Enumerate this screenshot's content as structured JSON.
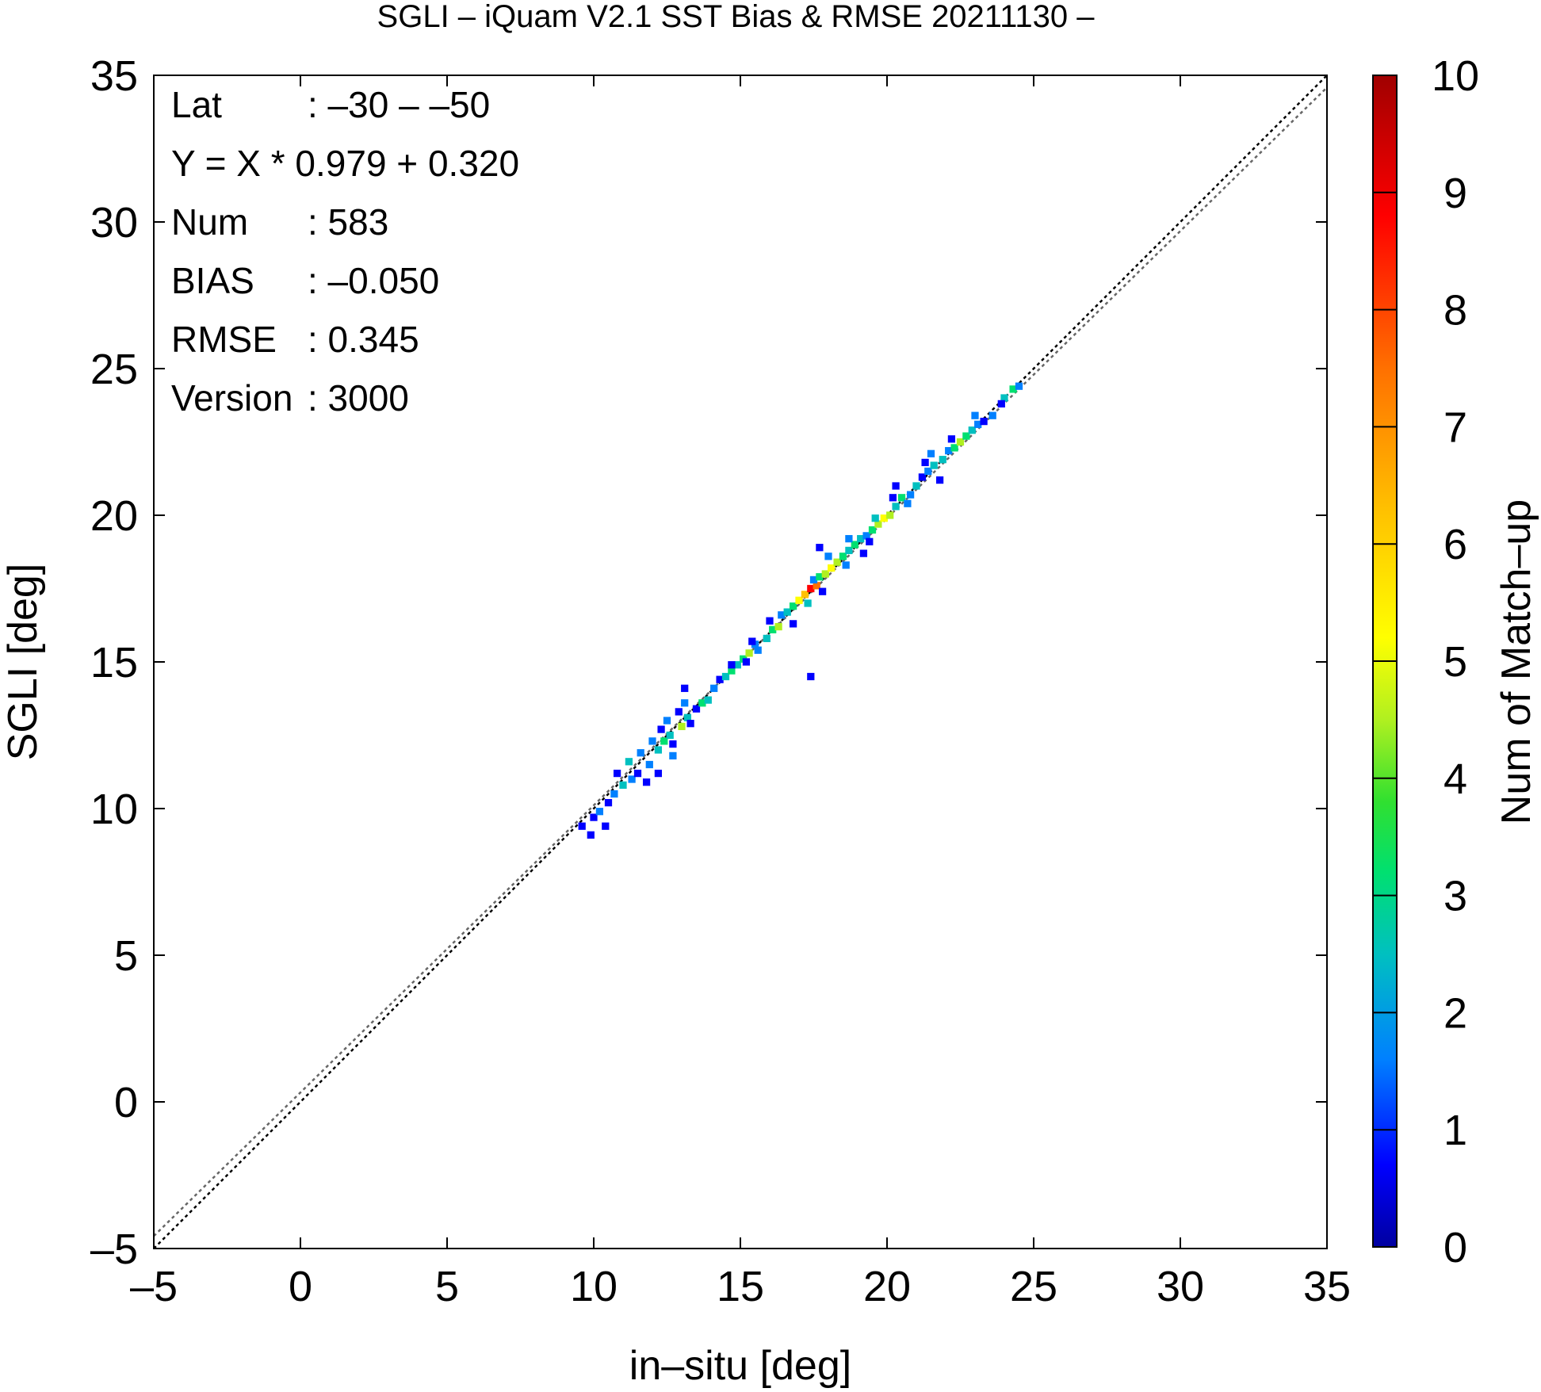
{
  "chart_data": {
    "type": "heatmap",
    "title": "SGLI – iQuam V2.1 SST Bias & RMSE 20211130 –",
    "xlabel": "in–situ [deg]",
    "ylabel": "SGLI [deg]",
    "xlim": [
      -5,
      35
    ],
    "ylim": [
      -5,
      35
    ],
    "x_ticks": [
      "–5",
      "0",
      "5",
      "10",
      "15",
      "20",
      "25",
      "30",
      "35"
    ],
    "y_ticks": [
      "–5",
      "0",
      "5",
      "10",
      "15",
      "20",
      "25",
      "30",
      "35"
    ],
    "x_tick_values": [
      -5,
      0,
      5,
      10,
      15,
      20,
      25,
      30,
      35
    ],
    "y_tick_values": [
      -5,
      0,
      5,
      10,
      15,
      20,
      25,
      30,
      35
    ],
    "stats": [
      {
        "label": "Lat",
        "value": ": –30 – –50"
      },
      {
        "label": "Y = X * 0.979 + 0.320",
        "value": ""
      },
      {
        "label": "Num",
        "value": ": 583"
      },
      {
        "label": "BIAS",
        "value": ": –0.050"
      },
      {
        "label": "RMSE",
        "value": ": 0.345"
      },
      {
        "label": "Version",
        "value": ": 3000"
      }
    ],
    "regression": {
      "slope": 0.979,
      "intercept": 0.32
    },
    "colorbar": {
      "label": "Num of Match–up",
      "range": [
        0,
        10
      ],
      "ticks": [
        "0",
        "1",
        "2",
        "3",
        "4",
        "5",
        "6",
        "7",
        "8",
        "9",
        "10"
      ],
      "tick_values": [
        0,
        1,
        2,
        3,
        4,
        5,
        6,
        7,
        8,
        9,
        10
      ],
      "colors": [
        "#0000a0",
        "#0000ff",
        "#0080ff",
        "#00c0c0",
        "#00e070",
        "#30e030",
        "#b0f020",
        "#ffff00",
        "#ffc000",
        "#ff7000",
        "#ff0000",
        "#a00000"
      ]
    },
    "bin_size": 0.25,
    "points": [
      [
        9.6,
        9.4,
        1
      ],
      [
        9.9,
        9.1,
        1
      ],
      [
        10.0,
        9.7,
        1
      ],
      [
        10.2,
        9.9,
        2
      ],
      [
        10.5,
        10.2,
        1
      ],
      [
        10.7,
        10.5,
        2
      ],
      [
        10.4,
        9.4,
        1
      ],
      [
        10.8,
        11.2,
        1
      ],
      [
        11.0,
        10.8,
        3
      ],
      [
        11.3,
        11.0,
        2
      ],
      [
        11.5,
        11.2,
        1
      ],
      [
        11.2,
        11.6,
        3
      ],
      [
        11.6,
        11.9,
        2
      ],
      [
        11.9,
        11.5,
        2
      ],
      [
        12.0,
        12.3,
        2
      ],
      [
        12.2,
        12.0,
        3
      ],
      [
        12.4,
        12.3,
        4
      ],
      [
        12.6,
        12.5,
        3
      ],
      [
        12.3,
        12.7,
        1
      ],
      [
        12.5,
        13.0,
        2
      ],
      [
        12.7,
        12.2,
        1
      ],
      [
        13.0,
        12.8,
        5
      ],
      [
        13.2,
        13.1,
        3
      ],
      [
        13.3,
        12.9,
        1
      ],
      [
        13.5,
        13.4,
        1
      ],
      [
        13.7,
        13.6,
        4
      ],
      [
        13.9,
        13.7,
        3
      ],
      [
        13.1,
        13.6,
        2
      ],
      [
        12.9,
        13.3,
        1
      ],
      [
        12.7,
        11.8,
        2
      ],
      [
        13.1,
        14.1,
        1
      ],
      [
        14.1,
        14.1,
        2
      ],
      [
        14.3,
        14.4,
        1
      ],
      [
        14.5,
        14.5,
        3
      ],
      [
        14.7,
        14.7,
        4
      ],
      [
        14.9,
        14.9,
        3
      ],
      [
        15.1,
        15.1,
        4
      ],
      [
        15.3,
        15.3,
        5
      ],
      [
        15.5,
        15.6,
        2
      ],
      [
        15.2,
        15.0,
        1
      ],
      [
        14.7,
        14.9,
        1
      ],
      [
        15.4,
        15.7,
        1
      ],
      [
        15.6,
        15.4,
        2
      ],
      [
        15.9,
        15.8,
        3
      ],
      [
        16.1,
        16.1,
        4
      ],
      [
        16.3,
        16.2,
        5
      ],
      [
        16.0,
        16.4,
        1
      ],
      [
        16.4,
        16.6,
        2
      ],
      [
        16.6,
        16.7,
        3
      ],
      [
        16.8,
        16.9,
        4
      ],
      [
        17.0,
        17.1,
        6
      ],
      [
        17.2,
        17.3,
        7
      ],
      [
        17.4,
        17.5,
        9
      ],
      [
        17.6,
        17.6,
        8
      ],
      [
        17.3,
        17.0,
        3
      ],
      [
        17.5,
        17.8,
        2
      ],
      [
        17.7,
        17.9,
        4
      ],
      [
        17.9,
        18.0,
        5
      ],
      [
        18.1,
        18.2,
        6
      ],
      [
        18.3,
        18.4,
        5
      ],
      [
        18.0,
        18.6,
        2
      ],
      [
        17.8,
        17.4,
        1
      ],
      [
        18.5,
        18.6,
        4
      ],
      [
        18.7,
        18.8,
        3
      ],
      [
        18.9,
        19.0,
        4
      ],
      [
        19.1,
        19.2,
        3
      ],
      [
        18.7,
        19.2,
        2
      ],
      [
        17.7,
        18.9,
        1
      ],
      [
        18.6,
        18.3,
        2
      ],
      [
        19.3,
        19.3,
        2
      ],
      [
        19.5,
        19.5,
        4
      ],
      [
        19.7,
        19.7,
        5
      ],
      [
        19.9,
        19.9,
        6
      ],
      [
        20.1,
        20.0,
        5
      ],
      [
        19.6,
        19.9,
        3
      ],
      [
        19.4,
        19.1,
        1
      ],
      [
        20.3,
        20.3,
        3
      ],
      [
        20.5,
        20.6,
        4
      ],
      [
        20.2,
        20.6,
        1
      ],
      [
        20.8,
        20.7,
        2
      ],
      [
        20.3,
        21.0,
        1
      ],
      [
        21.0,
        21.0,
        3
      ],
      [
        21.2,
        21.3,
        1
      ],
      [
        21.4,
        21.5,
        2
      ],
      [
        21.6,
        21.7,
        3
      ],
      [
        21.3,
        21.8,
        1
      ],
      [
        21.8,
        21.2,
        1
      ],
      [
        21.5,
        22.1,
        2
      ],
      [
        21.9,
        21.9,
        3
      ],
      [
        22.1,
        22.2,
        2
      ],
      [
        22.3,
        22.3,
        4
      ],
      [
        22.5,
        22.5,
        5
      ],
      [
        22.7,
        22.7,
        4
      ],
      [
        22.9,
        22.9,
        3
      ],
      [
        22.2,
        22.6,
        1
      ],
      [
        23.1,
        23.1,
        2
      ],
      [
        23.3,
        23.2,
        1
      ],
      [
        23.0,
        23.4,
        2
      ],
      [
        23.6,
        23.4,
        2
      ],
      [
        24.0,
        24.0,
        3
      ],
      [
        24.3,
        24.3,
        4
      ],
      [
        24.5,
        24.4,
        2
      ],
      [
        23.9,
        23.8,
        1
      ],
      [
        17.4,
        14.5,
        1
      ],
      [
        16.8,
        16.3,
        1
      ],
      [
        12.2,
        11.2,
        1
      ],
      [
        11.8,
        10.9,
        1
      ],
      [
        19.2,
        18.7,
        1
      ],
      [
        20.7,
        20.4,
        2
      ]
    ]
  }
}
